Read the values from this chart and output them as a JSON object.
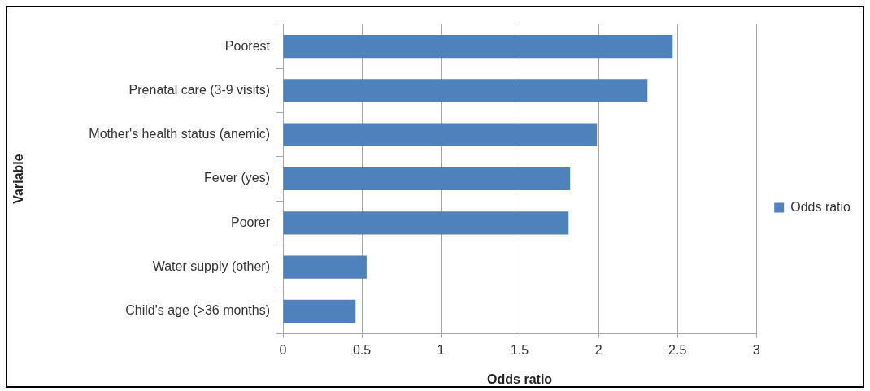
{
  "chart_data": {
    "type": "bar",
    "orientation": "horizontal",
    "xlabel": "Odds ratio",
    "ylabel": "Variable",
    "categories": [
      "Poorest",
      "Prenatal care (3-9 visits)",
      "Mother's health status (anemic)",
      "Fever (yes)",
      "Poorer",
      "Water supply (other)",
      "Child's age (>36 months)"
    ],
    "series": [
      {
        "name": "Odds ratio",
        "color": "#4f81bd",
        "values": [
          2.47,
          2.31,
          1.99,
          1.82,
          1.81,
          0.53,
          0.46
        ]
      }
    ],
    "xlim": [
      0,
      3
    ],
    "xticks": [
      0,
      0.5,
      1,
      1.5,
      2,
      2.5,
      3
    ],
    "grid": "x",
    "legend": "right"
  }
}
